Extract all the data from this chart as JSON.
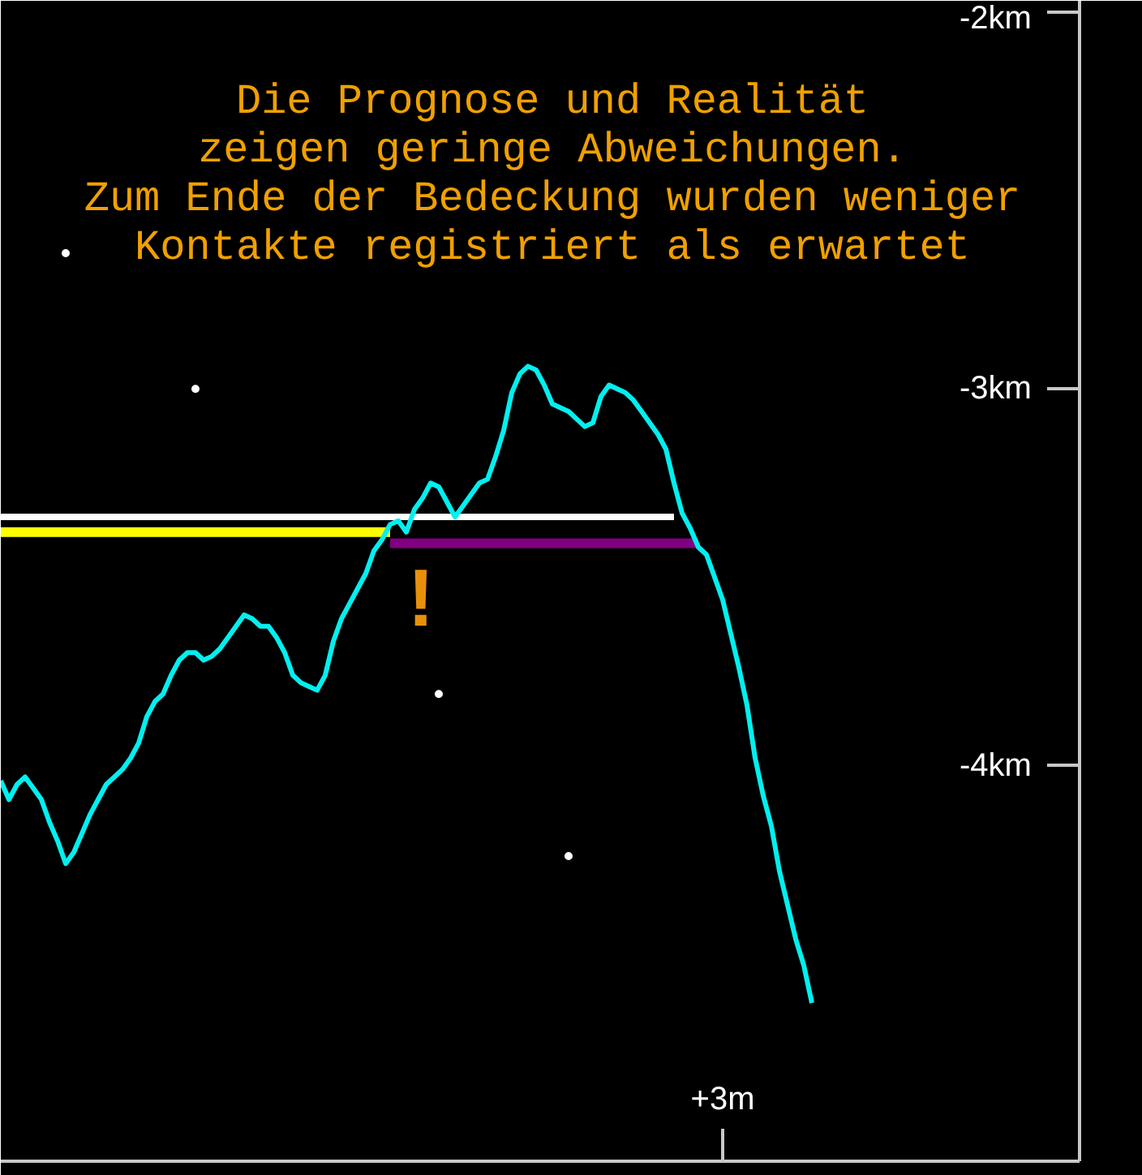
{
  "chart_data": {
    "type": "line",
    "categories": [
      null,
      null,
      null,
      null,
      null,
      null,
      null,
      null,
      null,
      null,
      null,
      null,
      null,
      null,
      null,
      null,
      null,
      null,
      null,
      null,
      null,
      null,
      null,
      null,
      null,
      null,
      null,
      null,
      null,
      null,
      null,
      null,
      null,
      null,
      null,
      null,
      null,
      null,
      null,
      null,
      null,
      null,
      null,
      null,
      null,
      null,
      null,
      null,
      null,
      null,
      null,
      null,
      null,
      null,
      null,
      null,
      null,
      null,
      null,
      null,
      null,
      null,
      null,
      null,
      null,
      null,
      null,
      null,
      null,
      null,
      null,
      null,
      null,
      null,
      null,
      null,
      null,
      null,
      null,
      null,
      null,
      null,
      null,
      null,
      null,
      null,
      null,
      null,
      null,
      "+3m",
      null,
      null,
      null,
      null,
      null,
      null,
      null,
      null,
      null,
      null,
      null,
      null,
      null,
      null,
      null,
      null,
      null,
      null,
      null,
      null,
      null,
      null,
      null,
      null,
      null,
      null,
      null,
      null,
      null,
      null,
      null,
      null,
      null,
      null,
      null,
      null,
      null,
      null,
      null,
      null,
      null,
      null,
      null
    ],
    "ylim": [
      -5.05,
      -1.97
    ],
    "yticks": [
      {
        "value": -2,
        "label": "-2km"
      },
      {
        "value": -3,
        "label": "-3km"
      },
      {
        "value": -4,
        "label": "-4km"
      }
    ],
    "series": [
      {
        "color": "#ffffff",
        "values": [
          -3.34,
          -3.34,
          -3.34,
          -3.34,
          -3.34,
          -3.34,
          -3.34,
          -3.34,
          -3.34,
          -3.34,
          -3.34,
          -3.34,
          -3.34,
          -3.34,
          -3.34,
          -3.34,
          -3.34,
          -3.34,
          -3.34,
          -3.34,
          -3.34,
          -3.34,
          -3.34,
          -3.34,
          -3.34,
          -3.34,
          -3.34,
          -3.34,
          -3.34,
          -3.34,
          -3.34,
          -3.34,
          -3.34,
          -3.34,
          -3.34,
          -3.34,
          -3.34,
          -3.34,
          -3.34,
          -3.34,
          -3.34,
          -3.34,
          -3.34,
          -3.34,
          -3.34,
          -3.34,
          -3.34,
          -3.34,
          -3.34,
          -3.34,
          -3.34,
          -3.34,
          -3.34,
          -3.34,
          -3.34,
          -3.34,
          -3.34,
          -3.34,
          -3.34,
          -3.34,
          -3.34,
          -3.34,
          -3.34,
          -3.34,
          -3.34,
          -3.34,
          -3.34,
          -3.34,
          -3.34,
          -3.34,
          -3.34,
          -3.34,
          -3.34,
          -3.34,
          -3.34,
          -3.34,
          -3.34,
          -3.34,
          -3.34,
          -3.34,
          -3.34,
          -3.34,
          -3.34,
          -3.34,
          null,
          null,
          null,
          null,
          null,
          null,
          null,
          null,
          null,
          null,
          null,
          null,
          null,
          null,
          null,
          null,
          null,
          null,
          null,
          null,
          null,
          null,
          null,
          null,
          null,
          null,
          null,
          null,
          null,
          null,
          null,
          null,
          null,
          null,
          null,
          null,
          null,
          null,
          null,
          null,
          null,
          null,
          null,
          null,
          null,
          null,
          null,
          null,
          null
        ]
      },
      {
        "color": "#ffff00",
        "values": [
          -3.38,
          -3.38,
          -3.38,
          -3.38,
          -3.38,
          -3.38,
          -3.38,
          -3.38,
          -3.38,
          -3.38,
          -3.38,
          -3.38,
          -3.38,
          -3.38,
          -3.38,
          -3.38,
          -3.38,
          -3.38,
          -3.38,
          -3.38,
          -3.38,
          -3.38,
          -3.38,
          -3.38,
          -3.38,
          -3.38,
          -3.38,
          -3.38,
          -3.38,
          -3.38,
          -3.38,
          -3.38,
          -3.38,
          -3.38,
          -3.38,
          -3.38,
          -3.38,
          -3.38,
          -3.38,
          -3.38,
          -3.38,
          -3.38,
          -3.38,
          -3.38,
          -3.38,
          -3.38,
          -3.38,
          -3.38,
          -3.38,
          null,
          null,
          null,
          null,
          null,
          null,
          null,
          null,
          null,
          null,
          null,
          null,
          null,
          null,
          null,
          null,
          null,
          null,
          null,
          null,
          null,
          null,
          null,
          null,
          null,
          null,
          null,
          null,
          null,
          null,
          null,
          null,
          null,
          null,
          null,
          null,
          null,
          null,
          null,
          null,
          null,
          null,
          null,
          null,
          null,
          null,
          null,
          null,
          null,
          null,
          null,
          null,
          null,
          null,
          null,
          null,
          null,
          null,
          null,
          null,
          null,
          null,
          null,
          null,
          null,
          null,
          null,
          null,
          null,
          null,
          null,
          null,
          null,
          null,
          null,
          null,
          null,
          null,
          null,
          null,
          null,
          null,
          null,
          null
        ]
      },
      {
        "color": "#800080",
        "values": [
          null,
          null,
          null,
          null,
          null,
          null,
          null,
          null,
          null,
          null,
          null,
          null,
          null,
          null,
          null,
          null,
          null,
          null,
          null,
          null,
          null,
          null,
          null,
          null,
          null,
          null,
          null,
          null,
          null,
          null,
          null,
          null,
          null,
          null,
          null,
          null,
          null,
          null,
          null,
          null,
          null,
          null,
          null,
          null,
          null,
          null,
          null,
          null,
          -3.41,
          -3.41,
          -3.41,
          -3.41,
          -3.41,
          -3.41,
          -3.41,
          -3.41,
          -3.41,
          -3.41,
          -3.41,
          -3.41,
          -3.41,
          -3.41,
          -3.41,
          -3.41,
          -3.41,
          -3.41,
          -3.41,
          -3.41,
          -3.41,
          -3.41,
          -3.41,
          -3.41,
          -3.41,
          -3.41,
          -3.41,
          -3.41,
          -3.41,
          -3.41,
          -3.41,
          -3.41,
          -3.41,
          -3.41,
          -3.41,
          -3.41,
          -3.41,
          -3.41,
          -3.41,
          null,
          null,
          null,
          null,
          null,
          null,
          null,
          null,
          null,
          null,
          null,
          null,
          null,
          null,
          null,
          null,
          null,
          null,
          null,
          null,
          null,
          null,
          null,
          null,
          null,
          null,
          null,
          null,
          null,
          null,
          null,
          null,
          null,
          null,
          null,
          null,
          null,
          null,
          null,
          null,
          null,
          null,
          null,
          null,
          null,
          null
        ]
      },
      {
        "color": "#00f0f0",
        "values": [
          -4.04,
          -4.09,
          -4.05,
          -4.03,
          -4.06,
          -4.09,
          -4.15,
          -4.2,
          -4.26,
          -4.23,
          -4.18,
          -4.13,
          -4.09,
          -4.05,
          -4.03,
          -4.01,
          -3.98,
          -3.94,
          -3.87,
          -3.83,
          -3.81,
          -3.76,
          -3.72,
          -3.7,
          -3.7,
          -3.72,
          -3.71,
          -3.69,
          -3.66,
          -3.63,
          -3.6,
          -3.61,
          -3.63,
          -3.63,
          -3.66,
          -3.7,
          -3.76,
          -3.78,
          -3.79,
          -3.8,
          -3.76,
          -3.67,
          -3.61,
          -3.57,
          -3.53,
          -3.49,
          -3.43,
          -3.4,
          -3.36,
          -3.35,
          -3.38,
          -3.32,
          -3.29,
          -3.25,
          -3.26,
          -3.3,
          -3.34,
          -3.31,
          -3.28,
          -3.25,
          -3.24,
          -3.18,
          -3.11,
          -3.01,
          -2.96,
          -2.94,
          -2.95,
          -2.99,
          -3.04,
          -3.05,
          -3.06,
          -3.08,
          -3.1,
          -3.09,
          -3.02,
          -2.99,
          -3.0,
          -3.01,
          -3.03,
          -3.06,
          -3.09,
          -3.12,
          -3.16,
          -3.25,
          -3.33,
          -3.37,
          -3.42,
          -3.44,
          -3.5,
          -3.56,
          -3.65,
          -3.74,
          -3.84,
          -3.98,
          -4.08,
          -4.16,
          -4.28,
          -4.37,
          -4.46,
          -4.53,
          -4.63,
          null,
          null,
          null,
          null,
          null,
          null,
          null,
          null,
          null,
          null,
          null,
          null,
          null,
          null,
          null,
          null,
          null,
          null,
          null,
          null,
          null,
          null,
          null,
          null,
          null,
          null,
          null,
          null,
          null,
          null,
          null,
          null
        ]
      },
      {
        "type": "scatter",
        "marker": "circle",
        "color": "#ffffff",
        "values": [
          null,
          null,
          null,
          null,
          null,
          null,
          null,
          null,
          -2.64,
          null,
          null,
          null,
          null,
          null,
          null,
          null,
          null,
          null,
          null,
          null,
          null,
          null,
          null,
          null,
          -3.0,
          null,
          null,
          null,
          null,
          null,
          null,
          null,
          null,
          null,
          null,
          null,
          null,
          null,
          null,
          null,
          null,
          null,
          null,
          null,
          null,
          null,
          null,
          null,
          null,
          null,
          null,
          null,
          null,
          null,
          -3.81,
          null,
          null,
          null,
          null,
          null,
          null,
          null,
          null,
          null,
          null,
          null,
          null,
          null,
          null,
          null,
          -4.24,
          null,
          null,
          null,
          null,
          null,
          null,
          null,
          null,
          null,
          null,
          null,
          null,
          null,
          null,
          null,
          null,
          null,
          null,
          null,
          null,
          null,
          null,
          null,
          null,
          null,
          null,
          null,
          null,
          null,
          null,
          null,
          null,
          null,
          null,
          null,
          null,
          null,
          null,
          null,
          null,
          null,
          null,
          null,
          null,
          null,
          null,
          null,
          null,
          null,
          null,
          null,
          null,
          null,
          null,
          null,
          null,
          null,
          null,
          null,
          null,
          null,
          null
        ]
      }
    ],
    "annotations": [
      "Die Prognose und Realität\nzeigen geringe Abweichungen.",
      "Zum Ende der Bedeckung wurden weniger\nKontakte registriert als erwartet",
      "!"
    ]
  }
}
